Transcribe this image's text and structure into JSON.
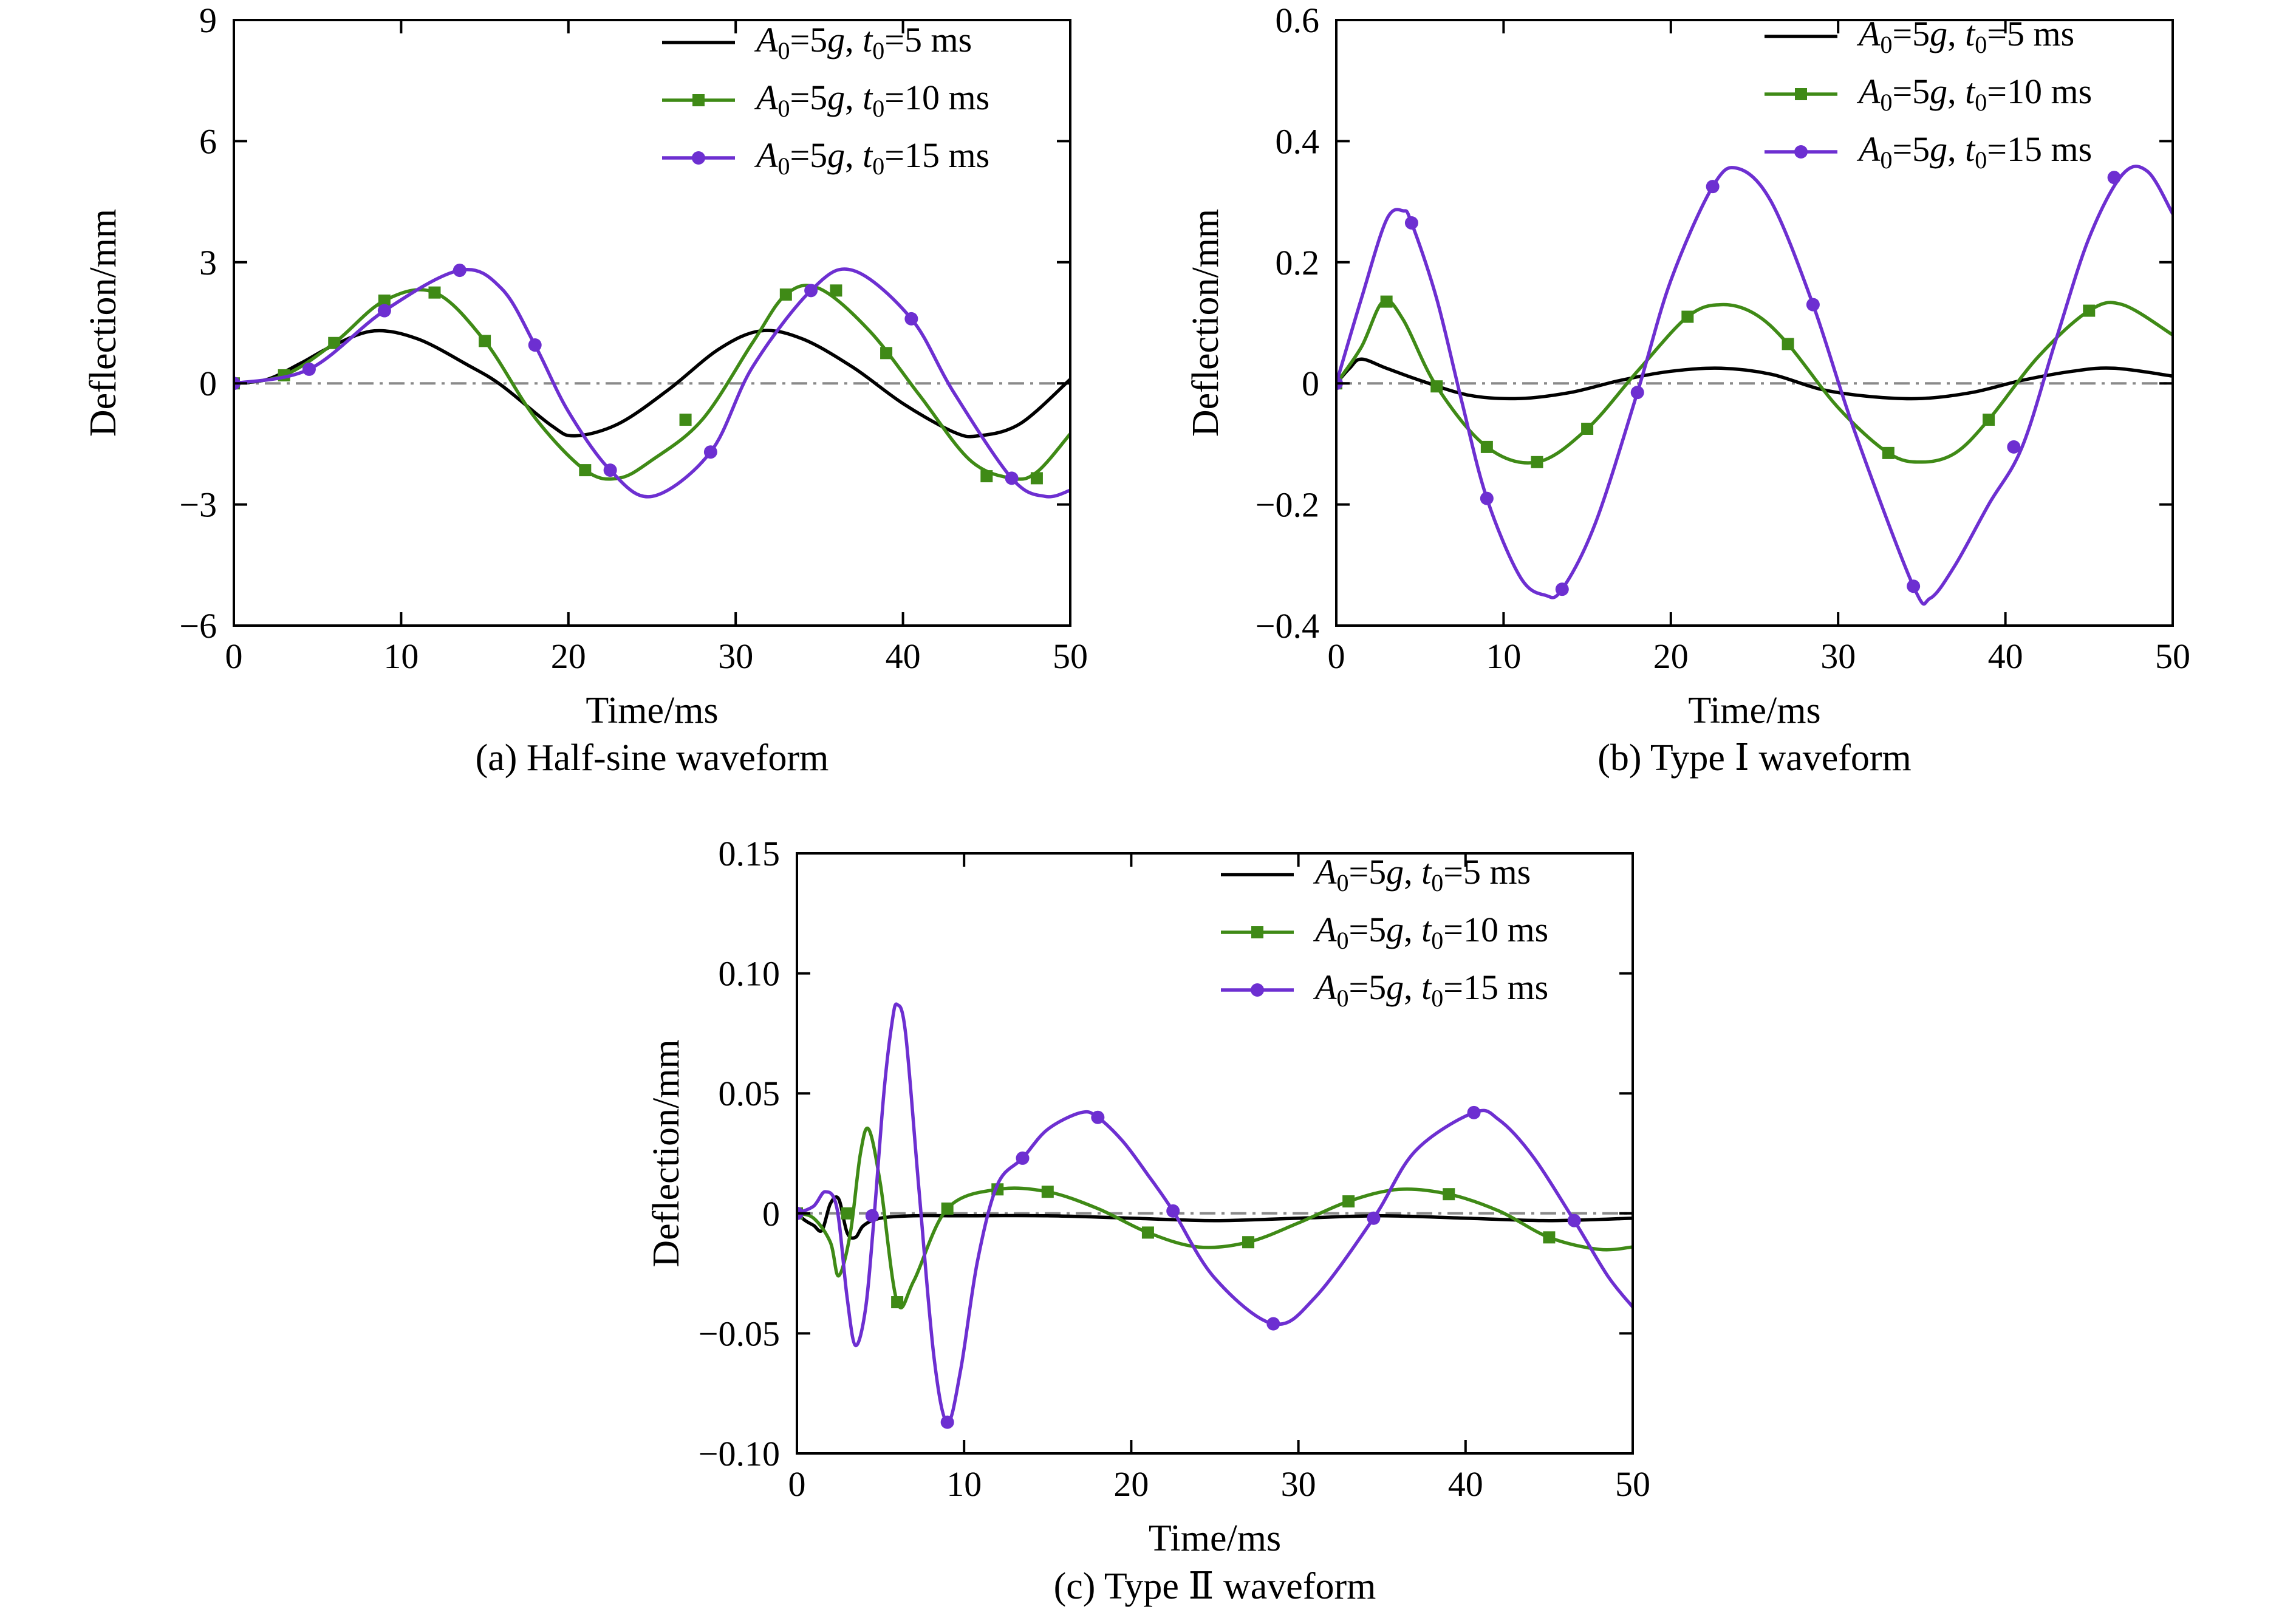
{
  "chart_data": [
    {
      "type": "line",
      "panel": "a",
      "caption": "(a) Half-sine waveform",
      "xlabel": "Time/ms",
      "ylabel": "Deflection/mm",
      "xlim": [
        0,
        50
      ],
      "ylim": [
        -6,
        9
      ],
      "xticks": [
        0,
        10,
        20,
        30,
        40,
        50
      ],
      "yticks": [
        9,
        6,
        3,
        0,
        -3,
        -6
      ],
      "ytick_labels": [
        "9",
        "6",
        "3",
        "0",
        "−3",
        "−6"
      ],
      "zero_line": true,
      "legend_position": "top-right",
      "series": [
        {
          "name": "A0=5g, t0=5 ms",
          "A0": "5g",
          "t0": "5 ms",
          "color": "#000000",
          "marker": "none",
          "x": [
            0,
            2,
            4,
            6,
            8.4,
            11,
            14,
            16,
            19,
            20.4,
            23,
            26,
            29,
            31.5,
            34,
            37,
            40,
            43,
            44.5,
            47,
            50
          ],
          "y": [
            0,
            0.1,
            0.5,
            0.95,
            1.3,
            1.1,
            0.45,
            -0.05,
            -1.05,
            -1.3,
            -1.0,
            -0.15,
            0.85,
            1.3,
            1.1,
            0.4,
            -0.5,
            -1.2,
            -1.3,
            -1.0,
            0.1
          ]
        },
        {
          "name": "A0=5g, t0=10 ms",
          "A0": "5g",
          "t0": "10 ms",
          "color": "#3f8a16",
          "marker": "square",
          "x": [
            0,
            3,
            6,
            9,
            12,
            15,
            18,
            21,
            23,
            25,
            28,
            31,
            33,
            35,
            38,
            41,
            44,
            46.5,
            48,
            50
          ],
          "y": [
            0,
            0.2,
            1.0,
            2.05,
            2.25,
            1.05,
            -0.85,
            -2.15,
            -2.35,
            -1.9,
            -0.9,
            1.0,
            2.2,
            2.35,
            1.3,
            -0.3,
            -1.9,
            -2.35,
            -2.2,
            -1.25
          ],
          "marker_x": [
            0,
            3,
            6,
            9,
            12,
            15,
            21,
            27,
            33,
            36,
            39,
            45,
            48
          ],
          "marker_y": [
            0,
            0.2,
            1.0,
            2.05,
            2.25,
            1.05,
            -2.15,
            -0.9,
            2.2,
            2.3,
            0.75,
            -2.3,
            -2.35
          ]
        },
        {
          "name": "A0=5g, t0=15 ms",
          "A0": "5g",
          "t0": "15 ms",
          "color": "#6d2fd1",
          "marker": "circle",
          "x": [
            0,
            4.5,
            9,
            13.5,
            16,
            18,
            20,
            22.5,
            25,
            28.5,
            31,
            34.5,
            37,
            40.5,
            43,
            46.5,
            48.5,
            50
          ],
          "y": [
            0,
            0.35,
            1.8,
            2.8,
            2.35,
            0.95,
            -0.7,
            -2.15,
            -2.8,
            -1.7,
            0.4,
            2.3,
            2.8,
            1.6,
            -0.2,
            -2.35,
            -2.8,
            -2.65
          ],
          "marker_x": [
            0,
            4.5,
            9,
            13.5,
            18,
            22.5,
            28.5,
            34.5,
            40.5,
            46.5
          ],
          "marker_y": [
            0,
            0.35,
            1.8,
            2.8,
            0.95,
            -2.15,
            -1.7,
            2.3,
            1.6,
            -2.35
          ]
        }
      ]
    },
    {
      "type": "line",
      "panel": "b",
      "caption": "(b) Type Ⅰ waveform",
      "xlabel": "Time/ms",
      "ylabel": "Deflection/mm",
      "xlim": [
        0,
        50
      ],
      "ylim": [
        -0.4,
        0.6
      ],
      "xticks": [
        0,
        10,
        20,
        30,
        40,
        50
      ],
      "yticks": [
        0.6,
        0.4,
        0.2,
        0,
        -0.2,
        -0.4
      ],
      "ytick_labels": [
        "0.6",
        "0.4",
        "0.2",
        "0",
        "−0.2",
        "−0.4"
      ],
      "zero_line": true,
      "legend_position": "top-right",
      "series": [
        {
          "name": "A0=5g, t0=5 ms",
          "A0": "5g",
          "t0": "5 ms",
          "color": "#000000",
          "marker": "none",
          "x": [
            0,
            0.8,
            1.5,
            3,
            5,
            8,
            11,
            14,
            17,
            20,
            23,
            26,
            29,
            32,
            35,
            38,
            41,
            44,
            46.5,
            50
          ],
          "y": [
            0,
            0.025,
            0.04,
            0.025,
            0.005,
            -0.02,
            -0.025,
            -0.015,
            0.005,
            0.02,
            0.025,
            0.015,
            -0.01,
            -0.022,
            -0.025,
            -0.015,
            0.005,
            0.02,
            0.025,
            0.012
          ]
        },
        {
          "name": "A0=5g, t0=10 ms",
          "A0": "5g",
          "t0": "10 ms",
          "color": "#3f8a16",
          "marker": "square",
          "x": [
            0,
            1.5,
            2.8,
            4,
            6,
            9,
            12,
            15,
            18,
            21,
            23,
            25,
            27,
            30,
            33,
            35,
            37,
            39,
            42,
            45,
            47,
            50
          ],
          "y": [
            0,
            0.06,
            0.135,
            0.105,
            -0.005,
            -0.105,
            -0.13,
            -0.075,
            0.02,
            0.11,
            0.13,
            0.115,
            0.065,
            -0.04,
            -0.115,
            -0.13,
            -0.115,
            -0.06,
            0.045,
            0.12,
            0.13,
            0.08
          ],
          "marker_x": [
            0,
            3,
            6,
            9,
            12,
            15,
            21,
            27,
            33,
            39,
            45
          ],
          "marker_y": [
            0,
            0.135,
            -0.005,
            -0.105,
            -0.13,
            -0.075,
            0.11,
            0.065,
            -0.115,
            -0.06,
            0.12
          ]
        },
        {
          "name": "A0=5g, t0=15 ms",
          "A0": "5g",
          "t0": "15 ms",
          "color": "#6d2fd1",
          "marker": "circle",
          "x": [
            0,
            1.5,
            3,
            4,
            4.5,
            6,
            7.5,
            9,
            11,
            12.5,
            13.5,
            15.5,
            18,
            20,
            22.5,
            24,
            26,
            28.5,
            31,
            34.5,
            35.5,
            37,
            39,
            41,
            43,
            45,
            47,
            48.5,
            50
          ],
          "y": [
            0,
            0.14,
            0.27,
            0.285,
            0.265,
            0.14,
            -0.03,
            -0.19,
            -0.32,
            -0.35,
            -0.34,
            -0.23,
            -0.015,
            0.17,
            0.325,
            0.355,
            0.3,
            0.13,
            -0.08,
            -0.335,
            -0.355,
            -0.3,
            -0.2,
            -0.105,
            0.07,
            0.24,
            0.345,
            0.35,
            0.28
          ],
          "marker_x": [
            0,
            4.5,
            9,
            13.5,
            18,
            22.5,
            28.5,
            34.5,
            40.5,
            46.5
          ],
          "marker_y": [
            0,
            0.265,
            -0.19,
            -0.34,
            -0.015,
            0.325,
            0.13,
            -0.335,
            -0.105,
            0.34
          ]
        }
      ]
    },
    {
      "type": "line",
      "panel": "c",
      "caption": "(c) Type Ⅱ waveform",
      "xlabel": "Time/ms",
      "ylabel": "Deflection/mm",
      "xlim": [
        0,
        50
      ],
      "ylim": [
        -0.1,
        0.15
      ],
      "xticks": [
        0,
        10,
        20,
        30,
        40,
        50
      ],
      "yticks": [
        0.15,
        0.1,
        0.05,
        0,
        -0.05,
        -0.1
      ],
      "ytick_labels": [
        "0.15",
        "0.10",
        "0.05",
        "0",
        "−0.05",
        "−0.10"
      ],
      "zero_line": true,
      "legend_position": "top-right",
      "series": [
        {
          "name": "A0=5g, t0=5 ms",
          "A0": "5g",
          "t0": "5 ms",
          "color": "#000000",
          "marker": "none",
          "x": [
            0,
            0.5,
            1,
            1.5,
            2,
            2.5,
            3,
            3.5,
            4,
            5,
            7,
            10,
            15,
            20,
            25,
            30,
            35,
            40,
            45,
            50
          ],
          "y": [
            0,
            -0.003,
            -0.005,
            -0.007,
            0.004,
            0.006,
            -0.008,
            -0.01,
            -0.005,
            -0.002,
            -0.001,
            -0.001,
            -0.001,
            -0.002,
            -0.003,
            -0.002,
            -0.001,
            -0.002,
            -0.003,
            -0.002
          ]
        },
        {
          "name": "A0=5g, t0=10 ms",
          "A0": "5g",
          "t0": "10 ms",
          "color": "#3f8a16",
          "marker": "square",
          "x": [
            0,
            1,
            2,
            2.5,
            3.2,
            3.8,
            4.3,
            5,
            6,
            7,
            9,
            12,
            15,
            18,
            21,
            24,
            27,
            30,
            33,
            36,
            39,
            42,
            45,
            48,
            50
          ],
          "y": [
            0,
            -0.002,
            -0.012,
            -0.026,
            -0.008,
            0.025,
            0.035,
            0.012,
            -0.037,
            -0.028,
            0.002,
            0.01,
            0.009,
            0.002,
            -0.008,
            -0.014,
            -0.012,
            -0.004,
            0.005,
            0.01,
            0.008,
            0.001,
            -0.01,
            -0.015,
            -0.014
          ],
          "marker_x": [
            0,
            3,
            6,
            9,
            12,
            15,
            21,
            27,
            33,
            39,
            45
          ],
          "marker_y": [
            0,
            0.0,
            -0.037,
            0.002,
            0.01,
            0.009,
            -0.008,
            -0.012,
            0.005,
            0.008,
            -0.01
          ]
        },
        {
          "name": "A0=5g, t0=15 ms",
          "A0": "5g",
          "t0": "15 ms",
          "color": "#6d2fd1",
          "marker": "circle",
          "x": [
            0,
            1,
            1.7,
            2.4,
            3,
            3.5,
            4.1,
            4.6,
            5.2,
            5.7,
            6,
            6.5,
            7.3,
            8.2,
            9,
            9.8,
            10.8,
            12,
            13.5,
            15,
            17,
            18,
            19.5,
            21,
            22.5,
            25,
            28.5,
            31,
            34.5,
            37,
            40.5,
            42,
            44,
            46.5,
            48.5,
            50
          ],
          "y": [
            0,
            0.003,
            0.009,
            0.002,
            -0.035,
            -0.055,
            -0.04,
            -0.003,
            0.05,
            0.08,
            0.087,
            0.075,
            0.01,
            -0.06,
            -0.087,
            -0.065,
            -0.02,
            0.012,
            0.023,
            0.035,
            0.042,
            0.04,
            0.03,
            0.016,
            0.001,
            -0.027,
            -0.046,
            -0.035,
            -0.002,
            0.026,
            0.042,
            0.039,
            0.024,
            -0.003,
            -0.026,
            -0.039
          ],
          "marker_x": [
            0,
            4.5,
            9,
            13.5,
            18,
            22.5,
            28.5,
            34.5,
            40.5,
            46.5
          ],
          "marker_y": [
            0,
            -0.001,
            -0.087,
            0.023,
            0.04,
            0.001,
            -0.046,
            -0.002,
            0.042,
            -0.003
          ]
        }
      ]
    }
  ]
}
